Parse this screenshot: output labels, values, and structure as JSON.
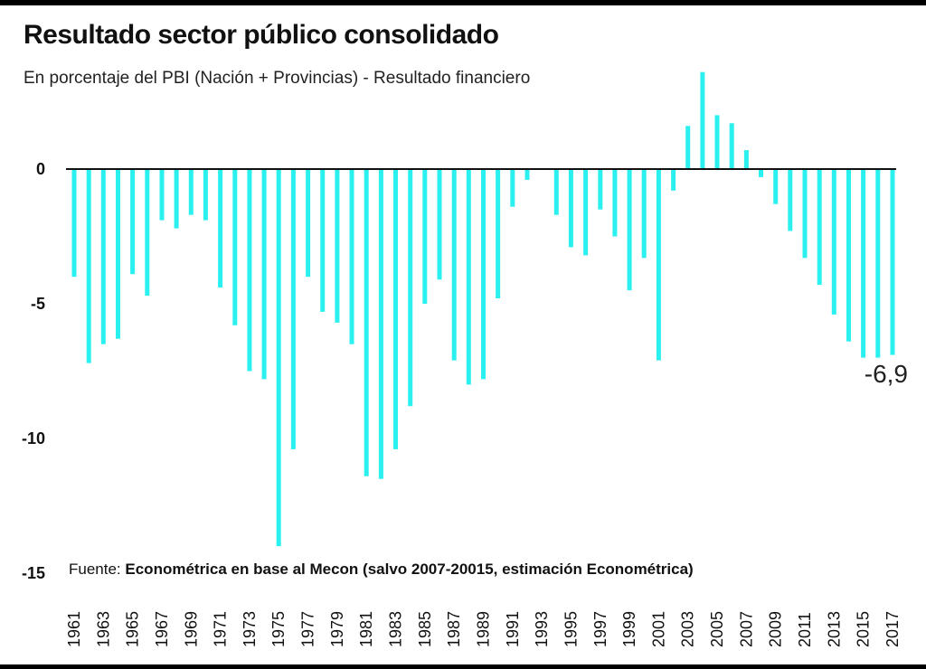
{
  "header": {
    "title": "Resultado sector público consolidado",
    "subtitle": "En porcentaje del PBI (Nación + Provincias) - Resultado financiero"
  },
  "source": {
    "label": "Fuente:",
    "text": "Econométrica en base al Mecon (salvo 2007-20015, estimación Econométrica)"
  },
  "colors": {
    "bar": "#2BF0F0",
    "axis": "#111111"
  },
  "chart_data": {
    "type": "bar",
    "title": "Resultado sector público consolidado",
    "subtitle": "En porcentaje del PBI (Nación + Provincias) - Resultado financiero",
    "ylim": [
      -15,
      3.5
    ],
    "yticks": [
      0,
      -5,
      -10,
      -15
    ],
    "ytick_labels": [
      "0",
      "-5",
      "-10",
      "-15"
    ],
    "xtick_labels": [
      "1961",
      "1963",
      "1965",
      "1967",
      "1969",
      "1971",
      "1973",
      "1975",
      "1977",
      "1979",
      "1981",
      "1983",
      "1985",
      "1987",
      "1989",
      "1991",
      "1993",
      "1995",
      "1997",
      "1999",
      "2001",
      "2003",
      "2005",
      "2007",
      "2009",
      "2011",
      "2013",
      "2015",
      "2017"
    ],
    "grid": false,
    "legend": "none",
    "categories": [
      1961,
      1962,
      1963,
      1964,
      1965,
      1966,
      1967,
      1968,
      1969,
      1970,
      1971,
      1972,
      1973,
      1974,
      1975,
      1976,
      1977,
      1978,
      1979,
      1980,
      1981,
      1982,
      1983,
      1984,
      1985,
      1986,
      1987,
      1988,
      1989,
      1990,
      1991,
      1992,
      1993,
      1994,
      1995,
      1996,
      1997,
      1998,
      1999,
      2000,
      2001,
      2002,
      2003,
      2004,
      2005,
      2006,
      2007,
      2008,
      2009,
      2010,
      2011,
      2012,
      2013,
      2014,
      2015,
      2016,
      2017
    ],
    "values": [
      -4.0,
      -7.2,
      -6.5,
      -6.3,
      -3.9,
      -4.7,
      -1.9,
      -2.2,
      -1.7,
      -1.9,
      -4.4,
      -5.8,
      -7.5,
      -7.8,
      -14.0,
      -10.4,
      -4.0,
      -5.3,
      -5.7,
      -6.5,
      -11.4,
      -11.5,
      -10.4,
      -8.8,
      -5.0,
      -4.1,
      -7.1,
      -8.0,
      -7.8,
      -4.8,
      -1.4,
      -0.4,
      0.0,
      -1.7,
      -2.9,
      -3.2,
      -1.5,
      -2.5,
      -4.5,
      -3.3,
      -7.1,
      -0.8,
      1.6,
      3.6,
      2.0,
      1.7,
      0.7,
      -0.3,
      -1.3,
      -2.3,
      -3.3,
      -4.3,
      -5.4,
      -6.4,
      -7.0,
      -7.0,
      -6.9
    ],
    "annotations": [
      {
        "year": 2017,
        "text": "-6,9"
      }
    ]
  }
}
